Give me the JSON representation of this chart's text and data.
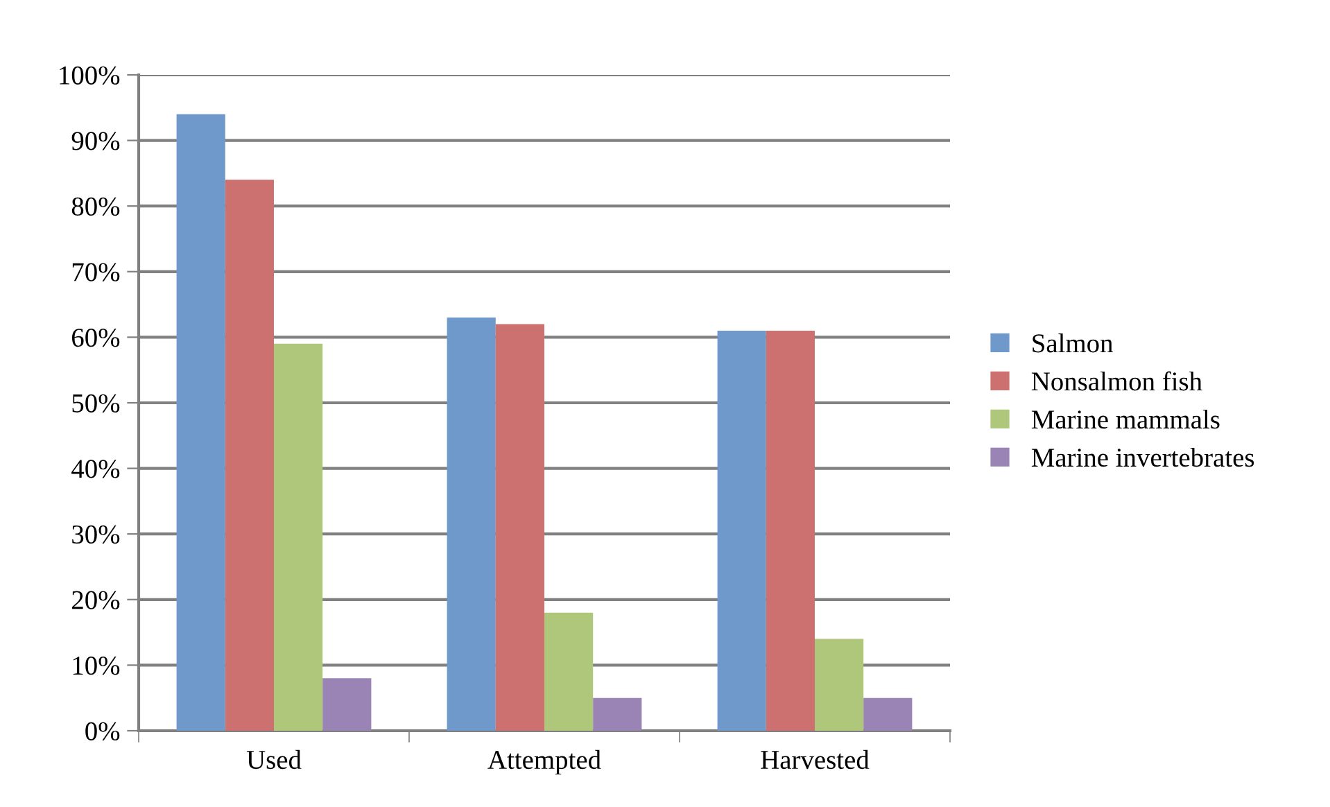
{
  "chart_data": {
    "type": "bar",
    "categories": [
      "Used",
      "Attempted",
      "Harvested"
    ],
    "series": [
      {
        "name": "Salmon",
        "color": "#7099cb",
        "values": [
          94,
          63,
          61
        ]
      },
      {
        "name": "Nonsalmon fish",
        "color": "#cc7070",
        "values": [
          84,
          62,
          61
        ]
      },
      {
        "name": "Marine mammals",
        "color": "#aec77a",
        "values": [
          59,
          18,
          14
        ]
      },
      {
        "name": "Marine invertebrates",
        "color": "#9a84b5",
        "values": [
          8,
          5,
          5
        ]
      }
    ],
    "ylim": [
      0,
      100
    ],
    "yticks": [
      {
        "value": 0,
        "label": "0%"
      },
      {
        "value": 10,
        "label": "10%"
      },
      {
        "value": 20,
        "label": "20%"
      },
      {
        "value": 30,
        "label": "30%"
      },
      {
        "value": 40,
        "label": "40%"
      },
      {
        "value": 50,
        "label": "50%"
      },
      {
        "value": 60,
        "label": "60%"
      },
      {
        "value": 70,
        "label": "70%"
      },
      {
        "value": 80,
        "label": "80%"
      },
      {
        "value": 90,
        "label": "90%"
      },
      {
        "value": 100,
        "label": "100%"
      }
    ],
    "grid": "y",
    "legend": "right"
  }
}
